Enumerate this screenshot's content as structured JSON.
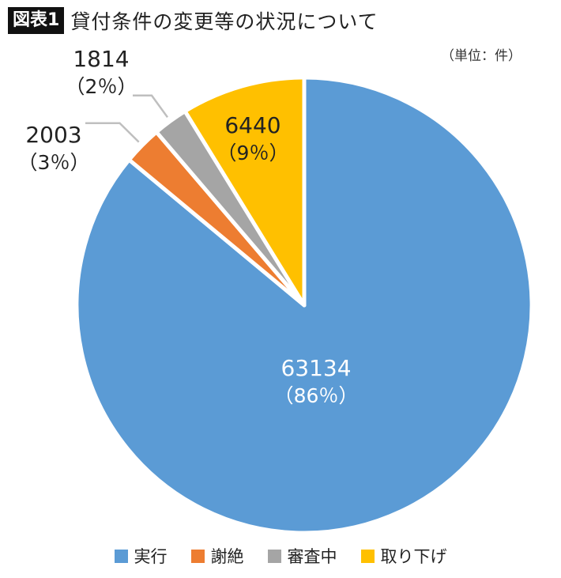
{
  "header": {
    "badge": "図表1",
    "title": "貸付条件の変更等の状況について",
    "unit": "（単位：件）"
  },
  "chart_data": {
    "type": "pie",
    "start": "12 o'clock, clockwise",
    "slices": [
      {
        "label": "実行",
        "value": 63134,
        "pct_label": "（86％）",
        "color": "#5B9BD5"
      },
      {
        "label": "謝絶",
        "value": 2003,
        "pct_label": "（3％）",
        "color": "#ED7D31"
      },
      {
        "label": "審査中",
        "value": 1814,
        "pct_label": "（2％）",
        "color": "#A5A5A5"
      },
      {
        "label": "取り下げ",
        "value": 6440,
        "pct_label": "（9％）",
        "color": "#FFC000"
      }
    ]
  }
}
